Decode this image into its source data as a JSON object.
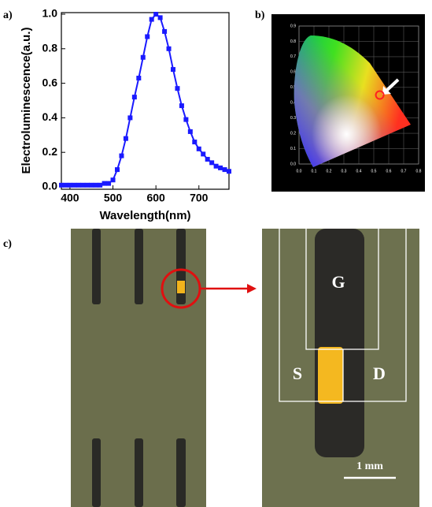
{
  "chart_data": [
    {
      "type": "line",
      "xlabel": "Wavelength(nm)",
      "ylabel": "Electroluminescence(a.u.)",
      "xlim": [
        380,
        770
      ],
      "ylim": [
        0,
        1
      ],
      "xticks": [
        400,
        500,
        600,
        700
      ],
      "yticks": [
        {
          "value": 0,
          "label": "0.0"
        },
        0.2,
        0.4,
        0.6,
        0.8,
        {
          "value": 1,
          "label": "1.0"
        }
      ],
      "series": [
        {
          "color": "#1a1aff",
          "x": [
            380,
            390,
            400,
            410,
            420,
            430,
            440,
            450,
            460,
            470,
            480,
            490,
            500,
            510,
            520,
            530,
            540,
            550,
            560,
            570,
            580,
            590,
            600,
            610,
            620,
            630,
            640,
            650,
            660,
            670,
            680,
            690,
            700,
            710,
            720,
            730,
            740,
            750,
            760,
            770
          ],
          "values": [
            0.01,
            0.01,
            0.01,
            0.01,
            0.01,
            0.01,
            0.01,
            0.01,
            0.01,
            0.01,
            0.02,
            0.02,
            0.04,
            0.1,
            0.18,
            0.28,
            0.4,
            0.52,
            0.63,
            0.75,
            0.87,
            0.97,
            1.0,
            0.98,
            0.9,
            0.8,
            0.68,
            0.57,
            0.47,
            0.39,
            0.32,
            0.26,
            0.22,
            0.19,
            0.16,
            0.14,
            0.12,
            0.11,
            0.1,
            0.09
          ]
        }
      ]
    },
    {
      "type": "scatter",
      "xlim": [
        0,
        0.8
      ],
      "ylim": [
        0,
        0.9
      ],
      "xticks": [
        {
          "value": 0,
          "label": "0.0"
        },
        0.1,
        0.2,
        0.3,
        0.4,
        0.5,
        0.6,
        0.7,
        0.8
      ],
      "yticks": [
        {
          "value": 0,
          "label": "0.0"
        },
        0.1,
        0.2,
        0.3,
        0.4,
        0.5,
        0.6,
        0.7,
        0.8,
        0.9
      ],
      "grid": true,
      "series": [
        {
          "color": "#ff2020",
          "x": [
            0.54
          ],
          "values": [
            0.45
          ]
        }
      ]
    }
  ],
  "figure": {
    "panel_labels": [
      "a)",
      "b)",
      "c)"
    ],
    "electrodes": {
      "gate": "G",
      "source": "S",
      "drain": "D"
    },
    "scale_bar": "1 mm"
  }
}
